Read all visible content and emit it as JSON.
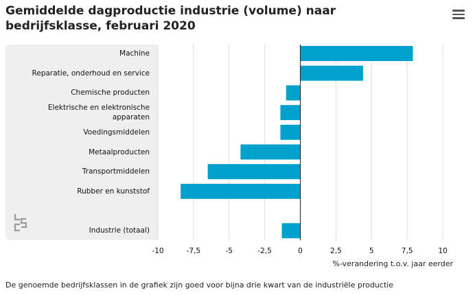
{
  "title": "Gemiddelde dagproductie industrie (volume) naar bedrijfsklasse, februari 2020",
  "footnote": "De genoemde bedrijfsklassen in de grafiek zijn goed voor bijna drie kwart van de industriële productie",
  "menu_icon": "hamburger-menu-icon",
  "logo_icon": "cbs-logo-icon",
  "colors": {
    "bar": "#00a1cd",
    "panel": "#efefef",
    "grid": "#dddddd",
    "zero": "#333333"
  },
  "chart_data": {
    "type": "bar",
    "orientation": "horizontal",
    "title": "Gemiddelde dagproductie industrie (volume) naar bedrijfsklasse, februari 2020",
    "xlabel": "%-verandering t.o.v. jaar eerder",
    "ylabel": "",
    "xlim": [
      -10,
      10
    ],
    "xticks": [
      -10,
      -7.5,
      -5,
      -2.5,
      0,
      2.5,
      5,
      7.5,
      10
    ],
    "xtick_labels": [
      "-10",
      "-7,5",
      "-5",
      "-2,5",
      "0",
      "2,5",
      "5",
      "7,5",
      "10"
    ],
    "grid": true,
    "categories": [
      "Machine",
      "Reparatie, onderhoud en service",
      "Chemische producten",
      "Elektrische en elektronische apparaten",
      "Voedingsmiddelen",
      "Metaalproducten",
      "Transportmiddelen",
      "Rubber en kunststof",
      "",
      "Industrie (totaal)"
    ],
    "values": [
      7.9,
      4.4,
      -1.0,
      -1.4,
      -1.4,
      -4.2,
      -6.5,
      -8.4,
      null,
      -1.3
    ]
  }
}
